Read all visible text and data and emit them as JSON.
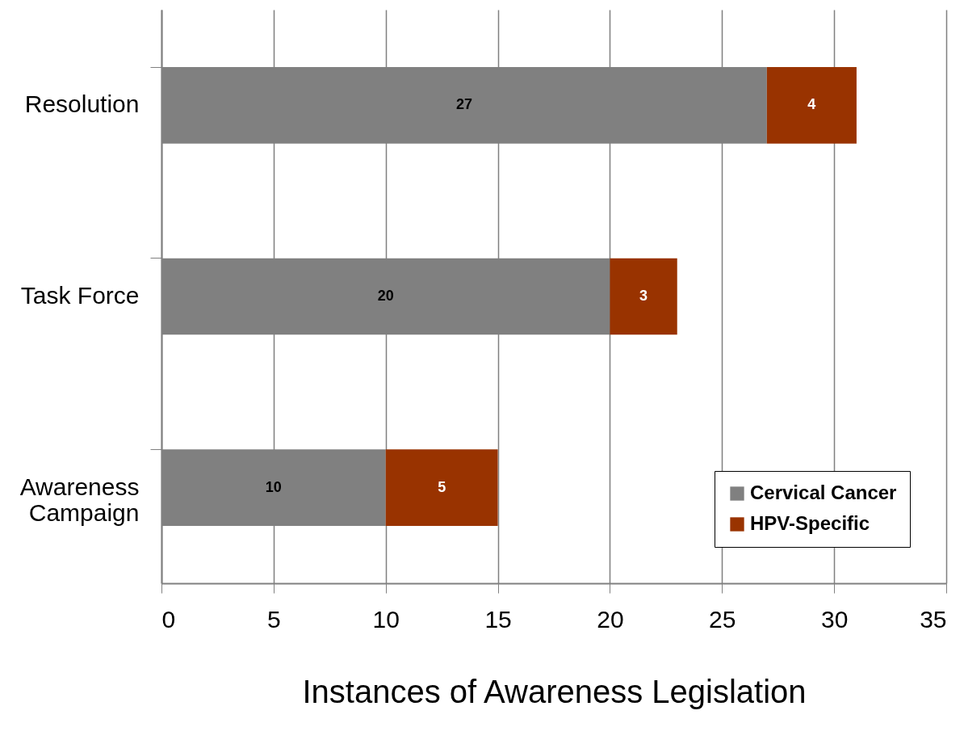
{
  "chart_data": {
    "type": "bar",
    "orientation": "horizontal",
    "stacked": true,
    "xlabel": "Instances of Awareness Legislation",
    "categories": [
      "Resolution",
      "Task Force",
      "Awareness\nCampaign"
    ],
    "series": [
      {
        "name": "Cervical Cancer",
        "color": "#808080",
        "values": [
          27,
          20,
          10
        ]
      },
      {
        "name": "HPV-Specific",
        "color": "#993300",
        "values": [
          4,
          3,
          5
        ]
      }
    ],
    "xlim": [
      0,
      35
    ],
    "xticks": [
      0,
      5,
      10,
      15,
      20,
      25,
      30,
      35
    ],
    "grid": "x",
    "legend": "bottom right",
    "data_labels": true
  }
}
